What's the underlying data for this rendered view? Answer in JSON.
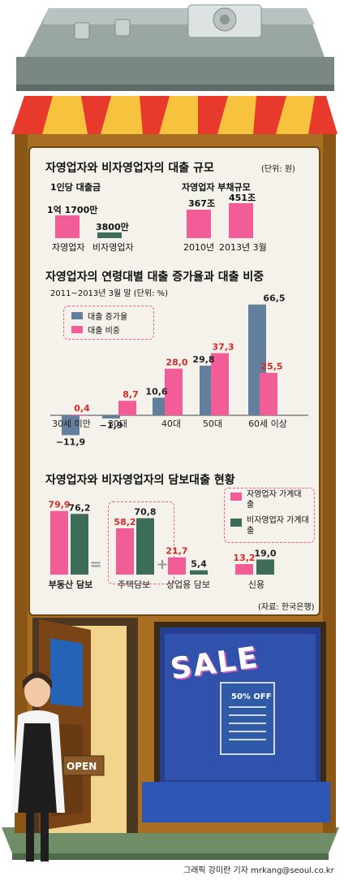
{
  "section1": {
    "title": "자영업자와 비자영업자의 대출 규모",
    "unit": "(단위: 원)",
    "left": {
      "subtitle": "1인당 대출금",
      "bars": [
        {
          "label": "자영업자",
          "value_text": "1억 1700만",
          "value": 117000000
        },
        {
          "label": "비자영업자",
          "value_text": "3800만",
          "value": 38000000
        }
      ]
    },
    "right": {
      "subtitle": "자영업자 부채규모",
      "bars": [
        {
          "label": "2010년",
          "value_text": "367조",
          "value": 367
        },
        {
          "label": "2013년 3월",
          "value_text": "451조",
          "value": 451
        }
      ]
    }
  },
  "section2": {
    "title": "자영업자의 연령대별 대출 증가율과 대출 비중",
    "subtitle": "2011~2013년 3월 말  (단위: %)",
    "legend": [
      "대출 증가율",
      "대출 비중"
    ]
  },
  "section3": {
    "title": "자영업자와 비자영업자의 담보대출 현황",
    "legend": [
      "자영업자 가계대출",
      "비자영업자 가계대출"
    ],
    "labels": [
      "부동산 담보",
      "주택담보",
      "상업용 담보",
      "신용"
    ]
  },
  "source": "(자료: 한국은행)",
  "sign": {
    "open": "OPEN",
    "sale": "SALE",
    "off": "50% OFF"
  },
  "credit": "그래픽 강미란 기자  mrkang@seoul.co.kr",
  "colors": {
    "pink": "#f25d97",
    "blue": "#62809e",
    "green": "#3d6c58",
    "red": "#d42a2a"
  },
  "chart_data": [
    {
      "type": "bar",
      "title": "자영업자의 연령대별 대출 증가율과 대출 비중",
      "categories": [
        "30세 미만",
        "30대",
        "40대",
        "50대",
        "60세 이상"
      ],
      "series": [
        {
          "name": "대출 증가율",
          "values": [
            -11.9,
            -1.9,
            10.6,
            29.8,
            66.5
          ]
        },
        {
          "name": "대출 비중",
          "values": [
            0.4,
            8.7,
            28.0,
            37.3,
            25.5
          ]
        }
      ]
    },
    {
      "type": "bar",
      "title": "자영업자와 비자영업자의 담보대출 현황",
      "categories": [
        "부동산 담보",
        "주택담보",
        "상업용 담보",
        "신용"
      ],
      "series": [
        {
          "name": "자영업자 가계대출",
          "values": [
            79.9,
            58.2,
            21.7,
            13.2
          ]
        },
        {
          "name": "비자영업자 가계대출",
          "values": [
            76.2,
            70.8,
            5.4,
            19.0
          ]
        }
      ]
    }
  ]
}
